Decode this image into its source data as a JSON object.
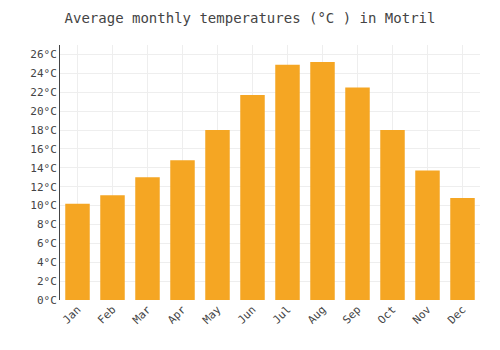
{
  "chart_data": {
    "type": "bar",
    "title": "Average monthly temperatures (°C ) in Motril",
    "categories": [
      "Jan",
      "Feb",
      "Mar",
      "Apr",
      "May",
      "Jun",
      "Jul",
      "Aug",
      "Sep",
      "Oct",
      "Nov",
      "Dec"
    ],
    "values": [
      10.2,
      11.1,
      13.0,
      14.8,
      18.0,
      21.7,
      24.9,
      25.2,
      22.5,
      18.0,
      13.7,
      10.8
    ],
    "color": "#F5A623",
    "ylim": [
      0,
      27
    ],
    "yticks": [
      {
        "value": 0,
        "label": "0°C"
      },
      {
        "value": 2,
        "label": "2°C"
      },
      {
        "value": 4,
        "label": "4°C"
      },
      {
        "value": 6,
        "label": "6°C"
      },
      {
        "value": 8,
        "label": "8°C"
      },
      {
        "value": 10,
        "label": "10°C"
      },
      {
        "value": 12,
        "label": "12°C"
      },
      {
        "value": 14,
        "label": "14°C"
      },
      {
        "value": 16,
        "label": "16°C"
      },
      {
        "value": 18,
        "label": "18°C"
      },
      {
        "value": 20,
        "label": "20°C"
      },
      {
        "value": 22,
        "label": "22°C"
      },
      {
        "value": 24,
        "label": "24°C"
      },
      {
        "value": 26,
        "label": "26°C"
      }
    ],
    "grid": true
  }
}
